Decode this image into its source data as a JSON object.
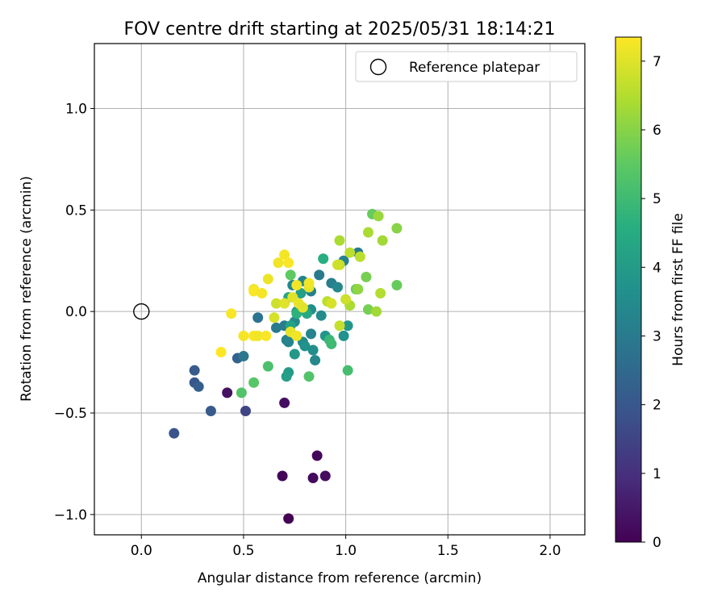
{
  "chart_data": {
    "type": "scatter",
    "title": "FOV centre drift starting at 2025/05/31 18:14:21",
    "xlabel": "Angular distance from reference (arcmin)",
    "ylabel": "Rotation from reference (arcmin)",
    "xlim": [
      -0.23,
      2.17
    ],
    "ylim": [
      -1.1,
      1.32
    ],
    "xticks": [
      0.0,
      0.5,
      1.0,
      1.5,
      2.0
    ],
    "xtick_labels": [
      "0.0",
      "0.5",
      "1.0",
      "1.5",
      "2.0"
    ],
    "yticks": [
      -1.0,
      -0.5,
      0.0,
      0.5,
      1.0
    ],
    "ytick_labels": [
      "−1.0",
      "−0.5",
      "0.0",
      "0.5",
      "1.0"
    ],
    "grid": true,
    "legend": {
      "placement": "top-right",
      "entries": [
        {
          "label": "Reference platepar",
          "marker": "open-circle",
          "color": "#000000"
        }
      ]
    },
    "reference_point": {
      "x": 0.0,
      "y": 0.0
    },
    "colorbar": {
      "label": "Hours from first FF file",
      "colormap": "viridis",
      "range": [
        0,
        7.35
      ],
      "ticks": [
        0,
        1,
        2,
        3,
        4,
        5,
        6,
        7
      ],
      "tick_labels": [
        "0",
        "1",
        "2",
        "3",
        "4",
        "5",
        "6",
        "7"
      ]
    },
    "series": [
      {
        "points": [
          {
            "x": 0.72,
            "y": -1.02,
            "h": 0.0
          },
          {
            "x": 0.69,
            "y": -0.81,
            "h": 0.1
          },
          {
            "x": 0.84,
            "y": -0.82,
            "h": 0.2
          },
          {
            "x": 0.9,
            "y": -0.81,
            "h": 0.25
          },
          {
            "x": 0.86,
            "y": -0.71,
            "h": 0.15
          },
          {
            "x": 0.7,
            "y": -0.45,
            "h": 0.3
          },
          {
            "x": 0.42,
            "y": -0.4,
            "h": 0.35
          },
          {
            "x": 0.51,
            "y": -0.49,
            "h": 1.5
          },
          {
            "x": 0.16,
            "y": -0.6,
            "h": 1.9
          },
          {
            "x": 0.34,
            "y": -0.49,
            "h": 2.1
          },
          {
            "x": 0.26,
            "y": -0.35,
            "h": 2.0
          },
          {
            "x": 0.28,
            "y": -0.37,
            "h": 2.2
          },
          {
            "x": 0.26,
            "y": -0.29,
            "h": 2.1
          },
          {
            "x": 0.47,
            "y": -0.23,
            "h": 2.3
          },
          {
            "x": 0.5,
            "y": -0.22,
            "h": 2.9
          },
          {
            "x": 0.57,
            "y": -0.03,
            "h": 2.8
          },
          {
            "x": 0.66,
            "y": -0.08,
            "h": 3.0
          },
          {
            "x": 0.7,
            "y": -0.07,
            "h": 3.1
          },
          {
            "x": 0.71,
            "y": -0.14,
            "h": 3.2
          },
          {
            "x": 0.72,
            "y": -0.15,
            "h": 3.3
          },
          {
            "x": 0.75,
            "y": -0.05,
            "h": 3.5
          },
          {
            "x": 0.76,
            "y": 0.0,
            "h": 3.6
          },
          {
            "x": 0.74,
            "y": 0.13,
            "h": 3.4
          },
          {
            "x": 0.79,
            "y": 0.15,
            "h": 3.3
          },
          {
            "x": 0.83,
            "y": 0.1,
            "h": 3.2
          },
          {
            "x": 0.87,
            "y": 0.18,
            "h": 3.0
          },
          {
            "x": 0.93,
            "y": 0.14,
            "h": 3.1
          },
          {
            "x": 0.99,
            "y": 0.25,
            "h": 3.2
          },
          {
            "x": 1.06,
            "y": 0.29,
            "h": 3.0
          },
          {
            "x": 0.96,
            "y": 0.12,
            "h": 3.4
          },
          {
            "x": 0.88,
            "y": -0.02,
            "h": 3.5
          },
          {
            "x": 0.83,
            "y": 0.01,
            "h": 3.6
          },
          {
            "x": 0.83,
            "y": -0.11,
            "h": 3.3
          },
          {
            "x": 0.79,
            "y": -0.15,
            "h": 3.5
          },
          {
            "x": 0.8,
            "y": -0.17,
            "h": 3.7
          },
          {
            "x": 0.84,
            "y": -0.19,
            "h": 3.6
          },
          {
            "x": 0.85,
            "y": -0.24,
            "h": 3.4
          },
          {
            "x": 0.9,
            "y": -0.12,
            "h": 3.8
          },
          {
            "x": 0.99,
            "y": -0.12,
            "h": 3.7
          },
          {
            "x": 1.01,
            "y": -0.07,
            "h": 3.9
          },
          {
            "x": 0.75,
            "y": -0.21,
            "h": 3.9
          },
          {
            "x": 0.72,
            "y": -0.3,
            "h": 4.0
          },
          {
            "x": 0.71,
            "y": -0.32,
            "h": 4.1
          },
          {
            "x": 0.73,
            "y": -0.07,
            "h": 4.2
          },
          {
            "x": 0.72,
            "y": 0.07,
            "h": 4.3
          },
          {
            "x": 0.78,
            "y": 0.09,
            "h": 4.1
          },
          {
            "x": 0.81,
            "y": -0.01,
            "h": 4.4
          },
          {
            "x": 0.89,
            "y": 0.26,
            "h": 4.6
          },
          {
            "x": 0.76,
            "y": -0.01,
            "h": 4.7
          },
          {
            "x": 0.92,
            "y": -0.14,
            "h": 4.9
          },
          {
            "x": 0.93,
            "y": -0.16,
            "h": 5.0
          },
          {
            "x": 1.01,
            "y": -0.29,
            "h": 5.1
          },
          {
            "x": 0.82,
            "y": -0.32,
            "h": 5.3
          },
          {
            "x": 0.62,
            "y": -0.27,
            "h": 5.2
          },
          {
            "x": 0.55,
            "y": -0.35,
            "h": 5.4
          },
          {
            "x": 0.49,
            "y": -0.4,
            "h": 5.3
          },
          {
            "x": 0.73,
            "y": 0.18,
            "h": 5.5
          },
          {
            "x": 1.13,
            "y": 0.48,
            "h": 5.6
          },
          {
            "x": 1.05,
            "y": 0.11,
            "h": 5.7
          },
          {
            "x": 1.1,
            "y": 0.17,
            "h": 5.8
          },
          {
            "x": 1.11,
            "y": 0.01,
            "h": 5.8
          },
          {
            "x": 1.25,
            "y": 0.13,
            "h": 5.6
          },
          {
            "x": 1.25,
            "y": 0.41,
            "h": 6.0
          },
          {
            "x": 1.16,
            "y": 0.47,
            "h": 6.2
          },
          {
            "x": 1.18,
            "y": 0.35,
            "h": 6.3
          },
          {
            "x": 1.11,
            "y": 0.39,
            "h": 6.4
          },
          {
            "x": 1.17,
            "y": 0.09,
            "h": 6.5
          },
          {
            "x": 1.15,
            "y": 0.0,
            "h": 6.3
          },
          {
            "x": 1.06,
            "y": 0.11,
            "h": 6.1
          },
          {
            "x": 1.02,
            "y": 0.03,
            "h": 6.4
          },
          {
            "x": 1.02,
            "y": 0.29,
            "h": 6.6
          },
          {
            "x": 1.07,
            "y": 0.27,
            "h": 6.6
          },
          {
            "x": 0.97,
            "y": 0.35,
            "h": 6.4
          },
          {
            "x": 0.97,
            "y": 0.23,
            "h": 6.7
          },
          {
            "x": 0.96,
            "y": 0.23,
            "h": 6.8
          },
          {
            "x": 0.91,
            "y": 0.05,
            "h": 6.6
          },
          {
            "x": 0.93,
            "y": 0.04,
            "h": 6.9
          },
          {
            "x": 0.97,
            "y": -0.07,
            "h": 6.7
          },
          {
            "x": 1.0,
            "y": 0.06,
            "h": 6.8
          },
          {
            "x": 0.65,
            "y": -0.03,
            "h": 6.9
          },
          {
            "x": 0.66,
            "y": 0.04,
            "h": 6.8
          },
          {
            "x": 0.7,
            "y": 0.04,
            "h": 7.0
          },
          {
            "x": 0.73,
            "y": -0.1,
            "h": 7.1
          },
          {
            "x": 0.74,
            "y": 0.07,
            "h": 7.0
          },
          {
            "x": 0.77,
            "y": 0.04,
            "h": 7.1
          },
          {
            "x": 0.76,
            "y": 0.13,
            "h": 7.2
          },
          {
            "x": 0.82,
            "y": 0.12,
            "h": 7.1
          },
          {
            "x": 0.82,
            "y": 0.14,
            "h": 7.2
          },
          {
            "x": 0.79,
            "y": 0.02,
            "h": 7.0
          },
          {
            "x": 0.76,
            "y": -0.12,
            "h": 7.2
          },
          {
            "x": 0.67,
            "y": 0.24,
            "h": 7.2
          },
          {
            "x": 0.7,
            "y": 0.28,
            "h": 7.25
          },
          {
            "x": 0.72,
            "y": 0.24,
            "h": 7.3
          },
          {
            "x": 0.62,
            "y": 0.16,
            "h": 7.15
          },
          {
            "x": 0.55,
            "y": 0.11,
            "h": 7.2
          },
          {
            "x": 0.55,
            "y": 0.1,
            "h": 7.3
          },
          {
            "x": 0.59,
            "y": 0.09,
            "h": 7.25
          },
          {
            "x": 0.55,
            "y": -0.12,
            "h": 7.3
          },
          {
            "x": 0.57,
            "y": -0.12,
            "h": 7.2
          },
          {
            "x": 0.61,
            "y": -0.12,
            "h": 7.3
          },
          {
            "x": 0.5,
            "y": -0.12,
            "h": 7.25
          },
          {
            "x": 0.44,
            "y": -0.01,
            "h": 7.3
          },
          {
            "x": 0.39,
            "y": -0.2,
            "h": 7.35
          }
        ]
      }
    ]
  }
}
